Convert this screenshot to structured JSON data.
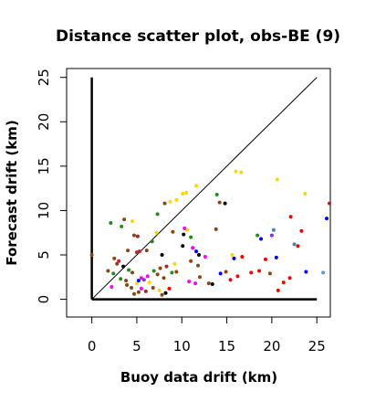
{
  "chart_data": {
    "type": "scatter",
    "title": "Distance scatter plot, obs-BE (9)",
    "xlabel": "Buoy data drift (km)",
    "ylabel": "Forecast drift (km)",
    "xlim": [
      -2.8,
      26.5
    ],
    "ylim": [
      -2,
      26
    ],
    "xticks": [
      0,
      5,
      10,
      15,
      20,
      25
    ],
    "yticks": [
      0,
      5,
      10,
      15,
      20,
      25
    ],
    "grid": false,
    "legend": "none",
    "reference_line": {
      "from": [
        0,
        0
      ],
      "to": [
        25,
        25
      ],
      "color": "#000000"
    },
    "axis_lines": [
      {
        "from": [
          0,
          0
        ],
        "to": [
          0,
          25
        ],
        "color": "#000000"
      },
      {
        "from": [
          0,
          0
        ],
        "to": [
          25,
          0
        ],
        "color": "#000000"
      }
    ],
    "points": [
      {
        "x": 0.0,
        "y": 5.0,
        "color": "#8b4513"
      },
      {
        "x": 2.1,
        "y": 8.6,
        "color": "#228b22"
      },
      {
        "x": 3.6,
        "y": 9.0,
        "color": "#8b4513"
      },
      {
        "x": 4.5,
        "y": 8.8,
        "color": "#ffd700"
      },
      {
        "x": 3.3,
        "y": 8.2,
        "color": "#228b22"
      },
      {
        "x": 4.7,
        "y": 7.2,
        "color": "#8b4513"
      },
      {
        "x": 5.1,
        "y": 7.1,
        "color": "#b22222"
      },
      {
        "x": 4.0,
        "y": 5.5,
        "color": "#8b4513"
      },
      {
        "x": 5.0,
        "y": 5.3,
        "color": "#8b4513"
      },
      {
        "x": 5.3,
        "y": 5.4,
        "color": "#dc143c"
      },
      {
        "x": 6.1,
        "y": 5.5,
        "color": "#8b4513"
      },
      {
        "x": 6.7,
        "y": 6.5,
        "color": "#228b22"
      },
      {
        "x": 7.2,
        "y": 7.5,
        "color": "#ffd700"
      },
      {
        "x": 2.5,
        "y": 4.6,
        "color": "#8b4513"
      },
      {
        "x": 3.0,
        "y": 4.3,
        "color": "#dc143c"
      },
      {
        "x": 2.8,
        "y": 4.0,
        "color": "#8b4513"
      },
      {
        "x": 3.5,
        "y": 3.7,
        "color": "#000000"
      },
      {
        "x": 1.8,
        "y": 3.2,
        "color": "#8b4513"
      },
      {
        "x": 2.4,
        "y": 2.9,
        "color": "#228b22"
      },
      {
        "x": 4.1,
        "y": 3.3,
        "color": "#228b22"
      },
      {
        "x": 4.5,
        "y": 3.0,
        "color": "#8b4513"
      },
      {
        "x": 3.2,
        "y": 2.3,
        "color": "#228b22"
      },
      {
        "x": 3.8,
        "y": 2.1,
        "color": "#8b4513"
      },
      {
        "x": 2.2,
        "y": 1.4,
        "color": "#ff00ff"
      },
      {
        "x": 3.9,
        "y": 1.6,
        "color": "#8b4513"
      },
      {
        "x": 4.4,
        "y": 1.3,
        "color": "#8b4513"
      },
      {
        "x": 5.0,
        "y": 1.8,
        "color": "#ffd700"
      },
      {
        "x": 5.2,
        "y": 2.1,
        "color": "#0000ff"
      },
      {
        "x": 5.5,
        "y": 2.4,
        "color": "#ff00ff"
      },
      {
        "x": 5.8,
        "y": 2.2,
        "color": "#8a2be2"
      },
      {
        "x": 6.2,
        "y": 2.6,
        "color": "#ff00ff"
      },
      {
        "x": 6.4,
        "y": 1.9,
        "color": "#ffd700"
      },
      {
        "x": 5.5,
        "y": 1.2,
        "color": "#ff00ff"
      },
      {
        "x": 5.2,
        "y": 0.8,
        "color": "#8b4513"
      },
      {
        "x": 4.7,
        "y": 0.6,
        "color": "#8b4513"
      },
      {
        "x": 6.0,
        "y": 0.9,
        "color": "#b22222"
      },
      {
        "x": 6.8,
        "y": 1.3,
        "color": "#8b4513"
      },
      {
        "x": 7.5,
        "y": 1.0,
        "color": "#ffd700"
      },
      {
        "x": 7.8,
        "y": 0.5,
        "color": "#8b4513"
      },
      {
        "x": 8.2,
        "y": 0.7,
        "color": "#000000"
      },
      {
        "x": 8.6,
        "y": 1.2,
        "color": "#ff0000"
      },
      {
        "x": 8.0,
        "y": 2.4,
        "color": "#8b4513"
      },
      {
        "x": 7.3,
        "y": 2.8,
        "color": "#8b4513"
      },
      {
        "x": 6.9,
        "y": 3.2,
        "color": "#228b22"
      },
      {
        "x": 7.6,
        "y": 3.5,
        "color": "#8b4513"
      },
      {
        "x": 8.3,
        "y": 3.7,
        "color": "#b22222"
      },
      {
        "x": 8.9,
        "y": 3.0,
        "color": "#228b22"
      },
      {
        "x": 9.4,
        "y": 3.1,
        "color": "#8b4513"
      },
      {
        "x": 9.2,
        "y": 4.0,
        "color": "#ffd700"
      },
      {
        "x": 7.8,
        "y": 5.0,
        "color": "#000000"
      },
      {
        "x": 9.0,
        "y": 7.6,
        "color": "#8b4513"
      },
      {
        "x": 7.3,
        "y": 9.6,
        "color": "#228b22"
      },
      {
        "x": 8.1,
        "y": 10.8,
        "color": "#8b4513"
      },
      {
        "x": 8.7,
        "y": 11.0,
        "color": "#ffd700"
      },
      {
        "x": 9.4,
        "y": 11.2,
        "color": "#ffd700"
      },
      {
        "x": 10.1,
        "y": 11.9,
        "color": "#ffd700"
      },
      {
        "x": 10.5,
        "y": 12.0,
        "color": "#ffd700"
      },
      {
        "x": 11.6,
        "y": 12.8,
        "color": "#ffd700"
      },
      {
        "x": 10.2,
        "y": 7.3,
        "color": "#000000"
      },
      {
        "x": 10.6,
        "y": 7.8,
        "color": "#ffd700"
      },
      {
        "x": 10.3,
        "y": 8.0,
        "color": "#ff00ff"
      },
      {
        "x": 11.0,
        "y": 7.0,
        "color": "#228b22"
      },
      {
        "x": 10.1,
        "y": 6.0,
        "color": "#000000"
      },
      {
        "x": 11.2,
        "y": 5.8,
        "color": "#ff00ff"
      },
      {
        "x": 11.6,
        "y": 5.4,
        "color": "#0000ff"
      },
      {
        "x": 11.9,
        "y": 5.0,
        "color": "#000000"
      },
      {
        "x": 12.6,
        "y": 4.8,
        "color": "#ff00ff"
      },
      {
        "x": 11.0,
        "y": 4.3,
        "color": "#8b4513"
      },
      {
        "x": 10.8,
        "y": 2.0,
        "color": "#ff00ff"
      },
      {
        "x": 11.5,
        "y": 1.8,
        "color": "#ff00ff"
      },
      {
        "x": 12.0,
        "y": 2.5,
        "color": "#8b4513"
      },
      {
        "x": 11.8,
        "y": 3.8,
        "color": "#8b4513"
      },
      {
        "x": 13.0,
        "y": 1.8,
        "color": "#8b4513"
      },
      {
        "x": 13.4,
        "y": 1.7,
        "color": "#000000"
      },
      {
        "x": 13.9,
        "y": 11.8,
        "color": "#228b22"
      },
      {
        "x": 14.2,
        "y": 10.9,
        "color": "#8b4513"
      },
      {
        "x": 14.8,
        "y": 10.8,
        "color": "#000000"
      },
      {
        "x": 13.8,
        "y": 7.9,
        "color": "#8b4513"
      },
      {
        "x": 14.3,
        "y": 2.9,
        "color": "#0000ff"
      },
      {
        "x": 14.9,
        "y": 3.1,
        "color": "#8b4513"
      },
      {
        "x": 15.4,
        "y": 2.2,
        "color": "#ff0000"
      },
      {
        "x": 16.2,
        "y": 2.6,
        "color": "#ff0000"
      },
      {
        "x": 15.8,
        "y": 4.6,
        "color": "#0000ff"
      },
      {
        "x": 16.7,
        "y": 4.8,
        "color": "#ff0000"
      },
      {
        "x": 15.6,
        "y": 5.0,
        "color": "#ffd700"
      },
      {
        "x": 16.0,
        "y": 14.4,
        "color": "#ffd700"
      },
      {
        "x": 16.6,
        "y": 14.3,
        "color": "#ffd700"
      },
      {
        "x": 17.7,
        "y": 3.0,
        "color": "#ff0000"
      },
      {
        "x": 18.6,
        "y": 3.2,
        "color": "#ff0000"
      },
      {
        "x": 18.4,
        "y": 7.2,
        "color": "#228b22"
      },
      {
        "x": 18.8,
        "y": 6.8,
        "color": "#0000ff"
      },
      {
        "x": 19.3,
        "y": 4.5,
        "color": "#ff0000"
      },
      {
        "x": 20.2,
        "y": 7.8,
        "color": "#4682b4"
      },
      {
        "x": 20.0,
        "y": 7.2,
        "color": "#8a2be2"
      },
      {
        "x": 20.5,
        "y": 4.7,
        "color": "#0000ff"
      },
      {
        "x": 19.8,
        "y": 2.9,
        "color": "#8b4513"
      },
      {
        "x": 20.7,
        "y": 1.0,
        "color": "#ff0000"
      },
      {
        "x": 21.3,
        "y": 1.9,
        "color": "#ff0000"
      },
      {
        "x": 22.0,
        "y": 2.4,
        "color": "#ff0000"
      },
      {
        "x": 20.6,
        "y": 13.5,
        "color": "#ffd700"
      },
      {
        "x": 22.1,
        "y": 9.3,
        "color": "#ff0000"
      },
      {
        "x": 22.5,
        "y": 6.2,
        "color": "#4682b4"
      },
      {
        "x": 22.9,
        "y": 6.0,
        "color": "#ff0000"
      },
      {
        "x": 23.3,
        "y": 7.7,
        "color": "#ff0000"
      },
      {
        "x": 23.7,
        "y": 11.9,
        "color": "#ffd700"
      },
      {
        "x": 23.8,
        "y": 3.1,
        "color": "#0000ff"
      },
      {
        "x": 25.7,
        "y": 3.0,
        "color": "#6495ed"
      },
      {
        "x": 26.1,
        "y": 9.1,
        "color": "#0000ff"
      },
      {
        "x": 26.4,
        "y": 10.8,
        "color": "#b22222"
      }
    ]
  }
}
